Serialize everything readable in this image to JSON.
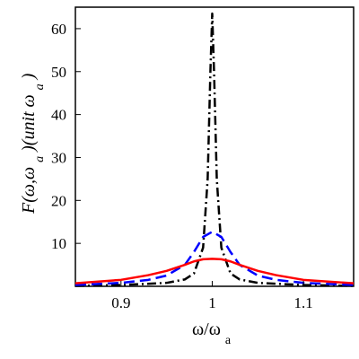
{
  "chart_data": {
    "type": "line",
    "xlabel": "ω/ω",
    "xlabel_sub": "a",
    "ylabel_main": "F(ω,ω",
    "ylabel_sub": "a",
    "ylabel_tail": ")(unit ω",
    "ylabel_sub2": "a",
    "ylabel_close": ")",
    "xlim": [
      0.85,
      1.155
    ],
    "ylim": [
      0,
      65
    ],
    "xticks": [
      0.9,
      1.0,
      1.1
    ],
    "xtick_labels": [
      "0.9",
      "1",
      "1.1"
    ],
    "yticks": [
      10,
      20,
      30,
      40,
      50,
      60
    ],
    "ytick_labels": [
      "10",
      "20",
      "30",
      "40",
      "50",
      "60"
    ],
    "grid": false,
    "series": [
      {
        "style": "dash-dot",
        "color": "#000000",
        "points": [
          [
            0.85,
            0.1
          ],
          [
            0.9,
            0.3
          ],
          [
            0.95,
            0.8
          ],
          [
            0.97,
            1.6
          ],
          [
            0.98,
            3
          ],
          [
            0.99,
            9
          ],
          [
            0.995,
            25
          ],
          [
            0.998,
            50
          ],
          [
            1.0,
            63.5
          ],
          [
            1.002,
            50
          ],
          [
            1.005,
            25
          ],
          [
            1.01,
            9
          ],
          [
            1.02,
            3
          ],
          [
            1.03,
            1.6
          ],
          [
            1.05,
            0.8
          ],
          [
            1.1,
            0.3
          ],
          [
            1.155,
            0.1
          ]
        ]
      },
      {
        "style": "dashed",
        "color": "#0000ff",
        "points": [
          [
            0.85,
            0.3
          ],
          [
            0.9,
            0.8
          ],
          [
            0.93,
            1.5
          ],
          [
            0.95,
            2.5
          ],
          [
            0.97,
            5
          ],
          [
            0.98,
            8
          ],
          [
            0.99,
            11.5
          ],
          [
            1.0,
            12.7
          ],
          [
            1.01,
            11.5
          ],
          [
            1.02,
            8
          ],
          [
            1.03,
            5
          ],
          [
            1.05,
            2.5
          ],
          [
            1.07,
            1.5
          ],
          [
            1.1,
            0.8
          ],
          [
            1.155,
            0.3
          ]
        ]
      },
      {
        "style": "solid",
        "color": "#ff0000",
        "points": [
          [
            0.85,
            0.7
          ],
          [
            0.9,
            1.5
          ],
          [
            0.93,
            2.6
          ],
          [
            0.95,
            3.6
          ],
          [
            0.97,
            5.0
          ],
          [
            0.98,
            5.8
          ],
          [
            0.99,
            6.3
          ],
          [
            1.0,
            6.4
          ],
          [
            1.01,
            6.3
          ],
          [
            1.02,
            5.8
          ],
          [
            1.03,
            5.0
          ],
          [
            1.05,
            3.6
          ],
          [
            1.07,
            2.6
          ],
          [
            1.1,
            1.5
          ],
          [
            1.155,
            0.7
          ]
        ]
      }
    ]
  }
}
